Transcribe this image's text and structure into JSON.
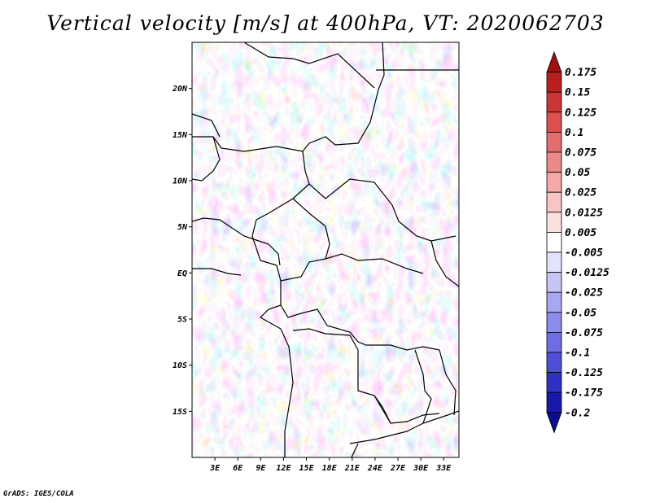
{
  "title": "Vertical velocity [m/s] at 400hPa, VT: 2020062703",
  "footer": "GrADS: IGES/COLA",
  "map": {
    "lat_labels": [
      "20N",
      "15N",
      "10N",
      "5N",
      "EQ",
      "5S",
      "10S",
      "15S"
    ],
    "lat_values": [
      20,
      15,
      10,
      5,
      0,
      -5,
      -10,
      -15
    ],
    "lon_labels": [
      "3E",
      "6E",
      "9E",
      "12E",
      "15E",
      "18E",
      "21E",
      "24E",
      "27E",
      "30E",
      "33E"
    ],
    "lon_values": [
      3,
      6,
      9,
      12,
      15,
      18,
      21,
      24,
      27,
      30,
      33
    ],
    "lon_range": [
      0,
      35
    ],
    "lat_range": [
      -20,
      25
    ]
  },
  "colorbar": {
    "labels": [
      "0.175",
      "0.15",
      "0.125",
      "0.1",
      "0.075",
      "0.05",
      "0.025",
      "0.0125",
      "0.005",
      "-0.005",
      "-0.0125",
      "-0.025",
      "-0.05",
      "-0.075",
      "-0.1",
      "-0.125",
      "-0.175",
      "-0.2"
    ],
    "colors": [
      "#a01010",
      "#b82020",
      "#cc3535",
      "#dc5050",
      "#e46e6e",
      "#ec8a8a",
      "#f4a8a8",
      "#f8c4c4",
      "#fbe0e0",
      "#ffffff",
      "#e2e2fb",
      "#c6c6f6",
      "#a8a8f0",
      "#8c8cec",
      "#6e6ee4",
      "#4e4ed8",
      "#3030c4",
      "#1818a8",
      "#0c0c90"
    ]
  }
}
